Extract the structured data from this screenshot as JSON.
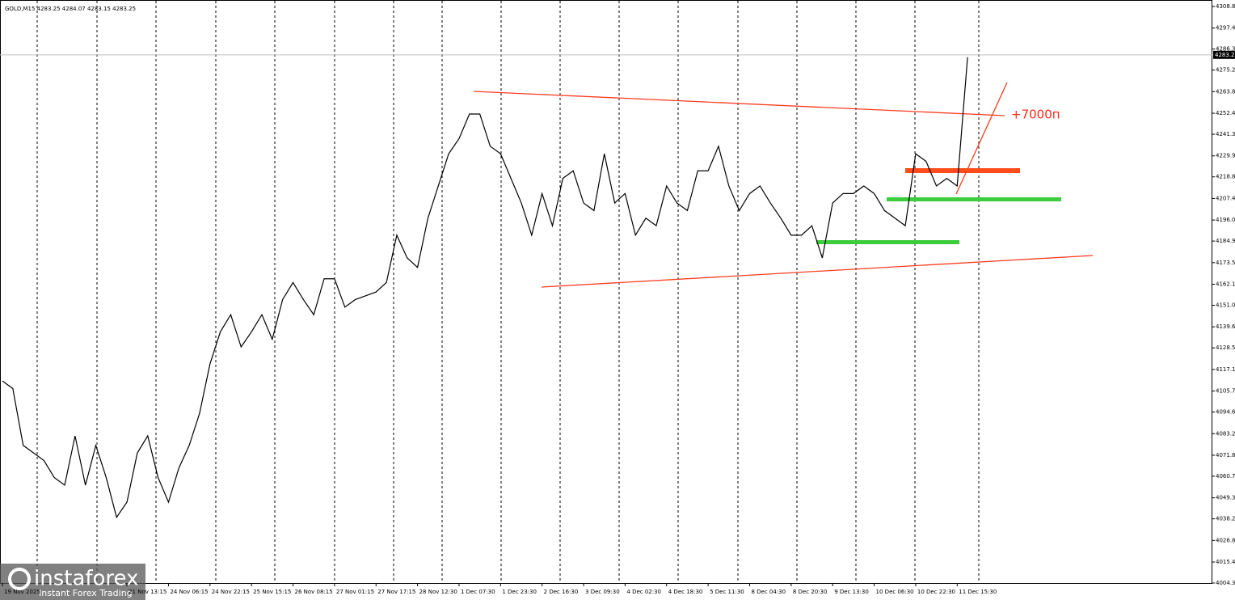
{
  "chart_data": {
    "type": "line",
    "title": "GOLD,M15  4283.25 4284.07 4283.15 4283.25",
    "categories": [
      "19 Nov 2025",
      null,
      null,
      null,
      null,
      null,
      null,
      null,
      null,
      null,
      null,
      null,
      "21 Nov 13:15",
      null,
      null,
      null,
      "24 Nov 06:15",
      null,
      null,
      null,
      "24 Nov 22:15",
      null,
      null,
      null,
      "25 Nov 15:15",
      null,
      null,
      null,
      "26 Nov 08:15",
      null,
      null,
      null,
      "27 Nov 01:15",
      null,
      null,
      null,
      "27 Nov 17:15",
      null,
      null,
      null,
      "28 Nov 12:30",
      null,
      null,
      null,
      "1 Dec 07:30",
      null,
      null,
      null,
      "1 Dec 23:30",
      null,
      null,
      null,
      "2 Dec 16:30",
      null,
      null,
      null,
      "3 Dec 09:30",
      null,
      null,
      null,
      "4 Dec 02:30",
      null,
      null,
      null,
      "4 Dec 18:30",
      null,
      null,
      null,
      "5 Dec 11:30",
      null,
      null,
      null,
      "8 Dec 04:30",
      null,
      null,
      null,
      "8 Dec 20:30",
      null,
      null,
      null,
      "9 Dec 13:30",
      null,
      null,
      null,
      "10 Dec 06:30",
      null,
      null,
      null,
      "10 Dec 22:30",
      null,
      null,
      null,
      "11 Dec 15:30",
      null
    ],
    "values": [
      4111,
      4107,
      4077,
      4073,
      4069,
      4060,
      4056,
      4082,
      4056,
      4077,
      4060,
      4039,
      4047,
      4073,
      4082,
      4060,
      4047,
      4065,
      4077,
      4094,
      4120,
      4137,
      4146,
      4129,
      4137,
      4146,
      4133,
      4154,
      4163,
      4154,
      4146,
      4165,
      4165,
      4150,
      4154,
      4156,
      4158,
      4163,
      4188,
      4176,
      4171,
      4197,
      4214,
      4231,
      4239,
      4252,
      4252,
      4235,
      4231,
      4218,
      4205,
      4188,
      4210,
      4193,
      4218,
      4222,
      4205,
      4201,
      4231,
      4205,
      4210,
      4188,
      4197,
      4193,
      4214,
      4205,
      4201,
      4222,
      4222,
      4235,
      4214,
      4201,
      4210,
      4214,
      4205,
      4197,
      4188,
      4188,
      4193,
      4176,
      4205,
      4210,
      4210,
      4214,
      4210,
      4201,
      4197,
      4193,
      4231,
      4227,
      4214,
      4218,
      4214,
      4282
    ],
    "color": "#000000",
    "current_price": 4283.25,
    "ylim": [
      4004.3,
      4308.8
    ],
    "yticks": [
      {
        "value": 4308.8,
        "label": "4308.80"
      },
      {
        "value": 4297.4,
        "label": "4297.40"
      },
      {
        "value": 4286.3,
        "label": "4286.30"
      },
      {
        "value": 4275.2,
        "label": "4275.20"
      },
      {
        "value": 4263.8,
        "label": "4263.80"
      },
      {
        "value": 4252.4,
        "label": "4252.40"
      },
      {
        "value": 4241.3,
        "label": "4241.30"
      },
      {
        "value": 4229.9,
        "label": "4229.90"
      },
      {
        "value": 4218.8,
        "label": "4218.80"
      },
      {
        "value": 4207.4,
        "label": "4207.40"
      },
      {
        "value": 4196,
        "label": "4196.00"
      },
      {
        "value": 4184.9,
        "label": "4184.90"
      },
      {
        "value": 4173.5,
        "label": "4173.50"
      },
      {
        "value": 4162.1,
        "label": "4162.10"
      },
      {
        "value": 4151,
        "label": "4151.00"
      },
      {
        "value": 4139.6,
        "label": "4139.60"
      },
      {
        "value": 4128.5,
        "label": "4128.50"
      },
      {
        "value": 4117.1,
        "label": "4117.10"
      },
      {
        "value": 4105.7,
        "label": "4105.70"
      },
      {
        "value": 4094.6,
        "label": "4094.60"
      },
      {
        "value": 4083.2,
        "label": "4083.20"
      },
      {
        "value": 4071.8,
        "label": "4071.80"
      },
      {
        "value": 4060.7,
        "label": "4060.70"
      },
      {
        "value": 4049.3,
        "label": "4049.30"
      },
      {
        "value": 4038.2,
        "label": "4038.20"
      },
      {
        "value": 4026.8,
        "label": "4026.80"
      },
      {
        "value": 4015.4,
        "label": "4015.40"
      },
      {
        "value": 4004.3,
        "label": "4004.30"
      }
    ],
    "annotation": "+7000п",
    "watermark": {
      "brand": "instaforex",
      "tagline": "Instant Forex Trading"
    }
  }
}
